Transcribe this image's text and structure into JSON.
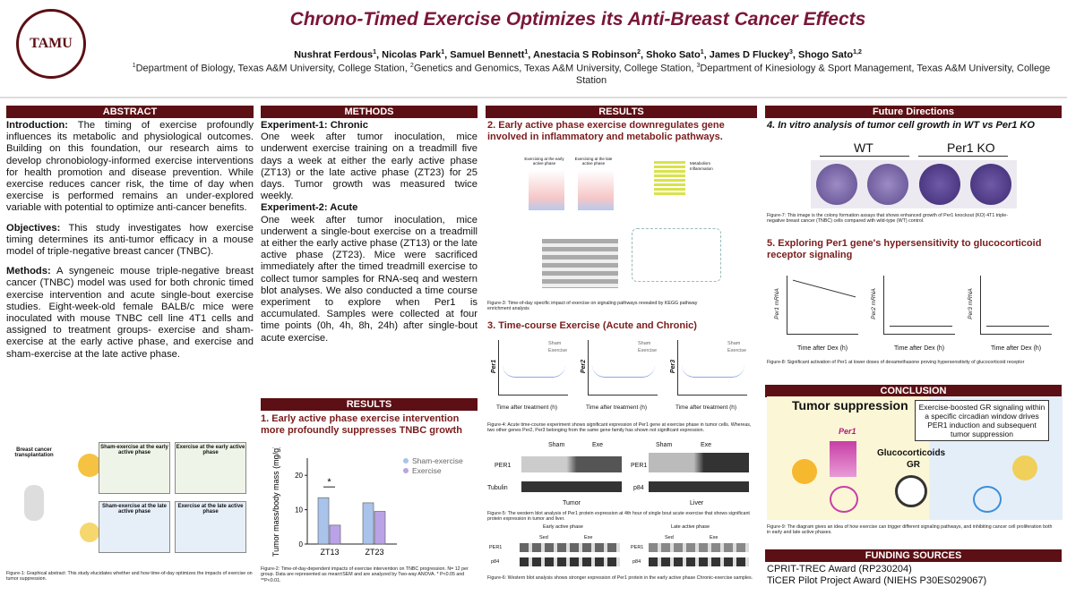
{
  "header": {
    "title": "Chrono-Timed Exercise Optimizes its Anti-Breast Cancer Effects",
    "authors": [
      {
        "name": "Nushrat Ferdous",
        "sup": "1"
      },
      {
        "name": "Nicolas Park",
        "sup": "1"
      },
      {
        "name": "Samuel Bennett",
        "sup": "1"
      },
      {
        "name": "Anestacia S Robinson",
        "sup": "2"
      },
      {
        "name": "Shoko Sato",
        "sup": "1"
      },
      {
        "name": "James D Fluckey",
        "sup": "3"
      },
      {
        "name": "Shogo Sato",
        "sup": "1,2"
      }
    ],
    "affiliations": [
      {
        "sup": "1",
        "text": "Department of Biology, Texas A&M University, College Station, "
      },
      {
        "sup": "2",
        "text": "Genetics and Genomics, Texas A&M University, College Station, "
      },
      {
        "sup": "3",
        "text": "Department of Kinesiology & Sport Management, Texas A&M University, College Station"
      }
    ],
    "logo": "TAMU"
  },
  "abstract": {
    "heading": "ABSTRACT",
    "intro_label": "Introduction:",
    "intro": "The timing of exercise profoundly influences its metabolic and physiological outcomes. Building on this foundation, our research aims to develop chronobiology-informed exercise interventions for health promotion and disease prevention. While exercise reduces cancer risk, the time of day when exercise is performed remains an under-explored variable with potential to optimize anti-cancer benefits.",
    "objectives_label": "Objectives:",
    "objectives": "This study investigates how exercise timing determines its anti-tumor efficacy in a mouse model of triple-negative breast cancer (TNBC).",
    "methods_label": "Methods:",
    "methods": "A syngeneic mouse triple-negative breast cancer (TNBC) model was used for both chronic timed exercise intervention and acute single-bout exercise studies. Eight-week-old female BALB/c mice were inoculated with mouse TNBC cell line 4T1 cells and assigned to treatment groups- exercise and sham-exercise at the early active phase, and exercise and sham-exercise at the late active phase."
  },
  "figure1": {
    "labels": [
      "Breast cancer transplantation",
      "Sham-exercise at the early active phase",
      "Exercise at the early active phase",
      "Sham-exercise at the late active phase",
      "Exercise at the late active phase"
    ],
    "caption": "Figure-1: Graphical abstract: This study elucidates whether and how time-of-day optimizes the impacts of exercise on tumor suppression."
  },
  "methods": {
    "heading": "METHODS",
    "exp1_label": "Experiment-1: Chronic",
    "exp1": "One week after tumor inoculation, mice underwent exercise training on a treadmill five days a week at either the early active phase (ZT13) or the late active phase (ZT23) for 25 days. Tumor growth was measured twice weekly.",
    "exp2_label": "Experiment-2: Acute",
    "exp2": "One week after tumor inoculation, mice underwent a single-bout exercise on a treadmill at either the early active phase (ZT13) or the late active phase (ZT23). Mice were sacrificed immediately after the timed treadmill exercise to collect tumor samples for RNA-seq and western blot analyses. We also conducted a time course experiment to explore when Per1 is accumulated. Samples were collected at four time points (0h, 4h, 8h, 24h) after single-bout acute exercise."
  },
  "results_left": {
    "heading": "RESULTS",
    "subheading": "1. Early active phase exercise intervention more profoundly suppresses TNBC growth",
    "chart_data": {
      "type": "bar",
      "y_label": "Tumor mass/body mass (mg/g)",
      "categories": [
        "ZT13",
        "ZT23"
      ],
      "series": [
        {
          "name": "Sham-exercise",
          "color": "#a9c3ea",
          "values": [
            13.5,
            12
          ]
        },
        {
          "name": "Exercise",
          "color": "#b9a3e6",
          "values": [
            5.5,
            9.5
          ]
        }
      ],
      "ylim": [
        0,
        25
      ],
      "yticks": [
        0,
        10,
        20
      ],
      "annotation": "*"
    },
    "caption": "Figure-2: Time-of-day-dependent impacts of exercise intervention on TNBC progression. N= 12 per group. Data are represented as mean±SEM and are analyzed by Two-way ANOVA. * P<0.05 and **P<0.01."
  },
  "results_mid": {
    "heading": "RESULTS",
    "sub2": "2. Early active phase exercise downregulates gene involved in inflammatory and metabolic pathways.",
    "fig3_labels": [
      "Exercising at the early active phase",
      "Exercising at the late active phase",
      "Metabolism",
      "Inflammation"
    ],
    "fig3_caption": "Figure-3: Time-of-day specific impact of exercise on signaling pathways revealed by KEGG pathway enrichment analysis",
    "sub3": "3. Time-course Exercise (Acute and Chronic)",
    "fig4_genes": [
      "Per1",
      "Per2",
      "Per3"
    ],
    "fig4_legend": [
      "Sham",
      "Exercise"
    ],
    "fig4_xlabel": "Time after treatment (h)",
    "fig4_caption": "Figure-4: Acute time-course experiment shows significant expression of Per1 gene at exercise phase in tumor cells. Whereas, two other genes Per2, Per3 belonging from the same gene family has shown not significant expression.",
    "fig5_labels": {
      "sham": "Sham",
      "exe": "Exe",
      "per1": "PER1",
      "tubulin": "Tubulin",
      "tumor": "Tumor",
      "p84": "p84",
      "liver": "Liver"
    },
    "fig5_caption": "Figure-5: The western blot analysis of Per1 protein expression at 4th hour of single bout acute exercise that shows significant protein expression in tumor and liver.",
    "fig6_labels": {
      "early": "Early active phase",
      "late": "Late active phase",
      "sed": "Sed",
      "exe": "Exe",
      "per1": "PER1",
      "p84": "p84"
    },
    "fig6_caption": "Figure-6: Western blot analysis shows stronger expression of Per1 protein in the early active phase Chronic-exercise samples."
  },
  "future": {
    "heading": "Future Directions",
    "sub4": "4. In vitro analysis of tumor cell growth in WT vs Per1 KO",
    "wt": "WT",
    "ko": "Per1 KO",
    "fig7_caption": "Figure-7: This image is the colony formation assays that shows enhanced growth of Per1 knockout (KO) 4T1 triple-negative breast cancer (TNBC) cells compared with wild-type (WT) control.",
    "sub5": "5. Exploring Per1 gene's hypersensitivity to glucocorticoid receptor signaling",
    "fig8_ylabels": [
      "Per1 mRNA",
      "Per2 mRNA",
      "Per3 mRNA"
    ],
    "fig8_xlabel": "Time after Dex (h)",
    "fig8_caption": "Figure-8: Significant activation of Per1 at lower doses of dexamethasone proving hypersensitivity of glucocorticoid receptor"
  },
  "conclusion": {
    "heading": "CONCLUSION",
    "tumor": "Tumor suppression",
    "per1": "Per1",
    "box": "Exercise-boosted GR signaling within a specific circadian window drives PER1 induction and subsequent tumor suppression",
    "gc": "Glucocorticoids",
    "gr": "GR",
    "caption": "Figure-9: The diagram gives an idea of how exercise can trigger different signaling pathways, and inhibiting cancer cell proliferation both in early and late active phases."
  },
  "funding": {
    "heading": "FUNDING SOURCES",
    "items": [
      "CPRIT-TREC Award (RP230204)",
      "TiCER Pilot Project Award (NIEHS P30ES029067)"
    ]
  }
}
